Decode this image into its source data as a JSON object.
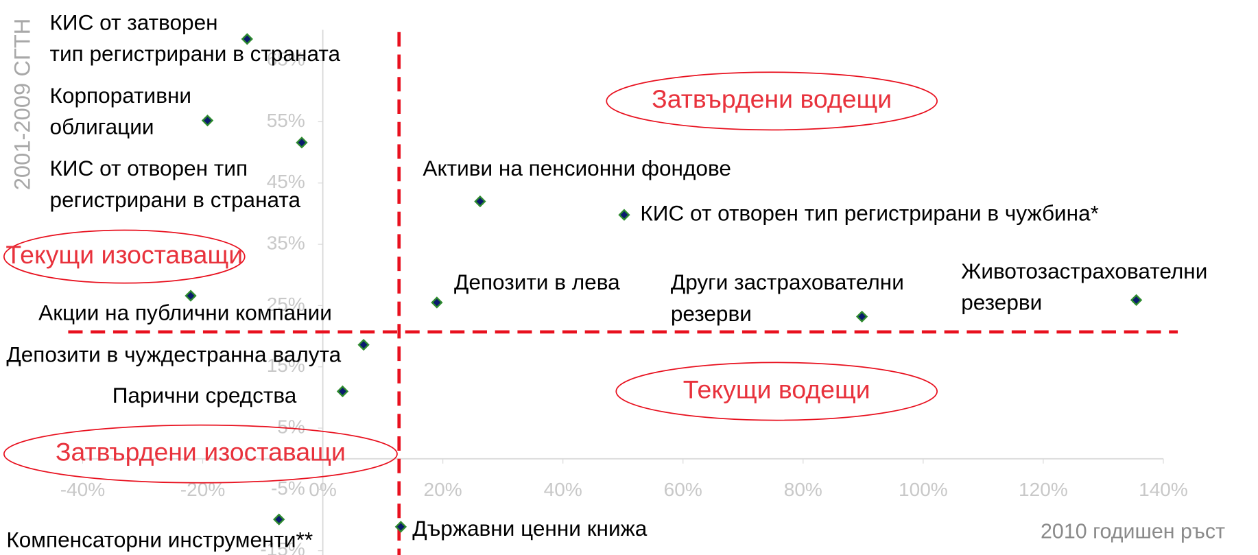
{
  "chart_data": {
    "type": "scatter",
    "x_label": "2010 годишен ръст",
    "y_label": "2001-2009 СГТН",
    "labels": [
      [
        "КИС от затворен",
        "тип регистрирани в страната"
      ],
      [
        "Корпоративни",
        "облигации"
      ],
      [
        "КИС от отворен тип",
        "регистрирани в страната"
      ],
      [
        "Активи на пенсионни фондове"
      ],
      [
        "КИС от отворен тип регистрирани в чужбина*"
      ],
      [
        "Акции на публични компании"
      ],
      [
        "Депозити в лева"
      ],
      [
        "Други застрахователни",
        "резерви"
      ],
      [
        "Животозастрахователни",
        "резерви"
      ],
      [
        "Депозити в чуждестранна валута"
      ],
      [
        "Парични средства"
      ],
      [
        "Компенсаторни инструменти**"
      ],
      [
        "Държавни ценни книжа"
      ]
    ],
    "x": [
      -12.6,
      -19.2,
      -3.5,
      26.2,
      50.2,
      -22.0,
      19.0,
      89.8,
      135.5,
      6.8,
      3.3,
      -7.3,
      13.0
    ],
    "y": [
      68.5,
      55.2,
      51.6,
      42.0,
      39.8,
      26.6,
      25.5,
      23.2,
      25.9,
      18.6,
      11.0,
      -9.9,
      -11.1
    ],
    "color": "#0a1a6e",
    "edge_color": "#2e8b2e",
    "xlim": [
      -40,
      140
    ],
    "xticks": [
      {
        "value": -40,
        "label": "-40%"
      },
      {
        "value": -20,
        "label": "-20%"
      },
      {
        "value": 0,
        "label": "0%"
      },
      {
        "value": 20,
        "label": "20%"
      },
      {
        "value": 40,
        "label": "40%"
      },
      {
        "value": 60,
        "label": "60%"
      },
      {
        "value": 80,
        "label": "80%"
      },
      {
        "value": 100,
        "label": "100%"
      },
      {
        "value": 120,
        "label": "120%"
      },
      {
        "value": 140,
        "label": "140%"
      }
    ],
    "ylim": [
      -20,
      70
    ],
    "yticks": [
      {
        "value": -15,
        "label": "-15%"
      },
      {
        "value": -5,
        "label": "-5%"
      },
      {
        "value": 5,
        "label": "5%"
      },
      {
        "value": 15,
        "label": "15%"
      },
      {
        "value": 25,
        "label": "25%"
      },
      {
        "value": 35,
        "label": "35%"
      },
      {
        "value": 45,
        "label": "45%"
      },
      {
        "value": 55,
        "label": "55%"
      },
      {
        "value": 65,
        "label": "65%"
      }
    ],
    "reference_x": 12.7,
    "reference_y": 20.7,
    "reference_color": "#e8101e",
    "quadrants": [
      "Затвърдени водещи",
      "Текущи изоставащи",
      "Текущи водещи",
      "Затвърдени изоставащи"
    ]
  }
}
